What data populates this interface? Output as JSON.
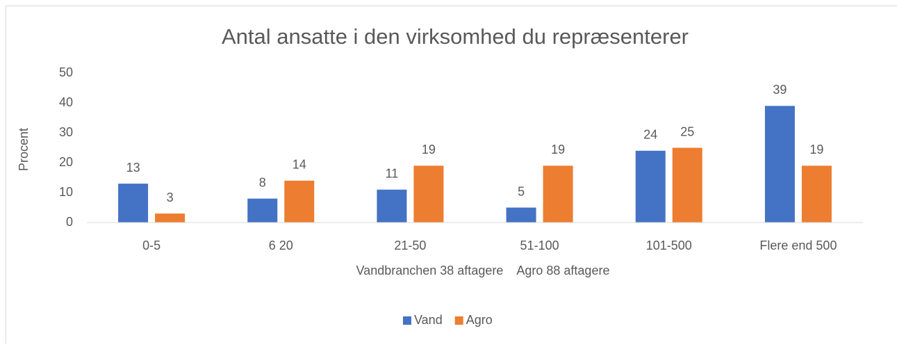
{
  "chart_data": {
    "type": "bar",
    "title": "Antal ansatte i den virksomhed du repræsenterer",
    "x_label": "Vandbranchen 38 aftagere    Agro 88 aftagere",
    "y_label": "Procent",
    "categories": [
      "0-5",
      "6 20",
      "21-50",
      "51-100",
      "101-500",
      "Flere end 500"
    ],
    "series": [
      {
        "name": "Vand",
        "color": "#4472c4",
        "values": [
          13,
          8,
          11,
          5,
          24,
          39
        ]
      },
      {
        "name": "Agro",
        "color": "#ed7d31",
        "values": [
          3,
          14,
          19,
          19,
          25,
          19
        ]
      }
    ],
    "ylim": [
      0,
      50
    ],
    "yticks": [
      0,
      10,
      20,
      30,
      40,
      50
    ],
    "grid": false,
    "legend": "bottom"
  }
}
